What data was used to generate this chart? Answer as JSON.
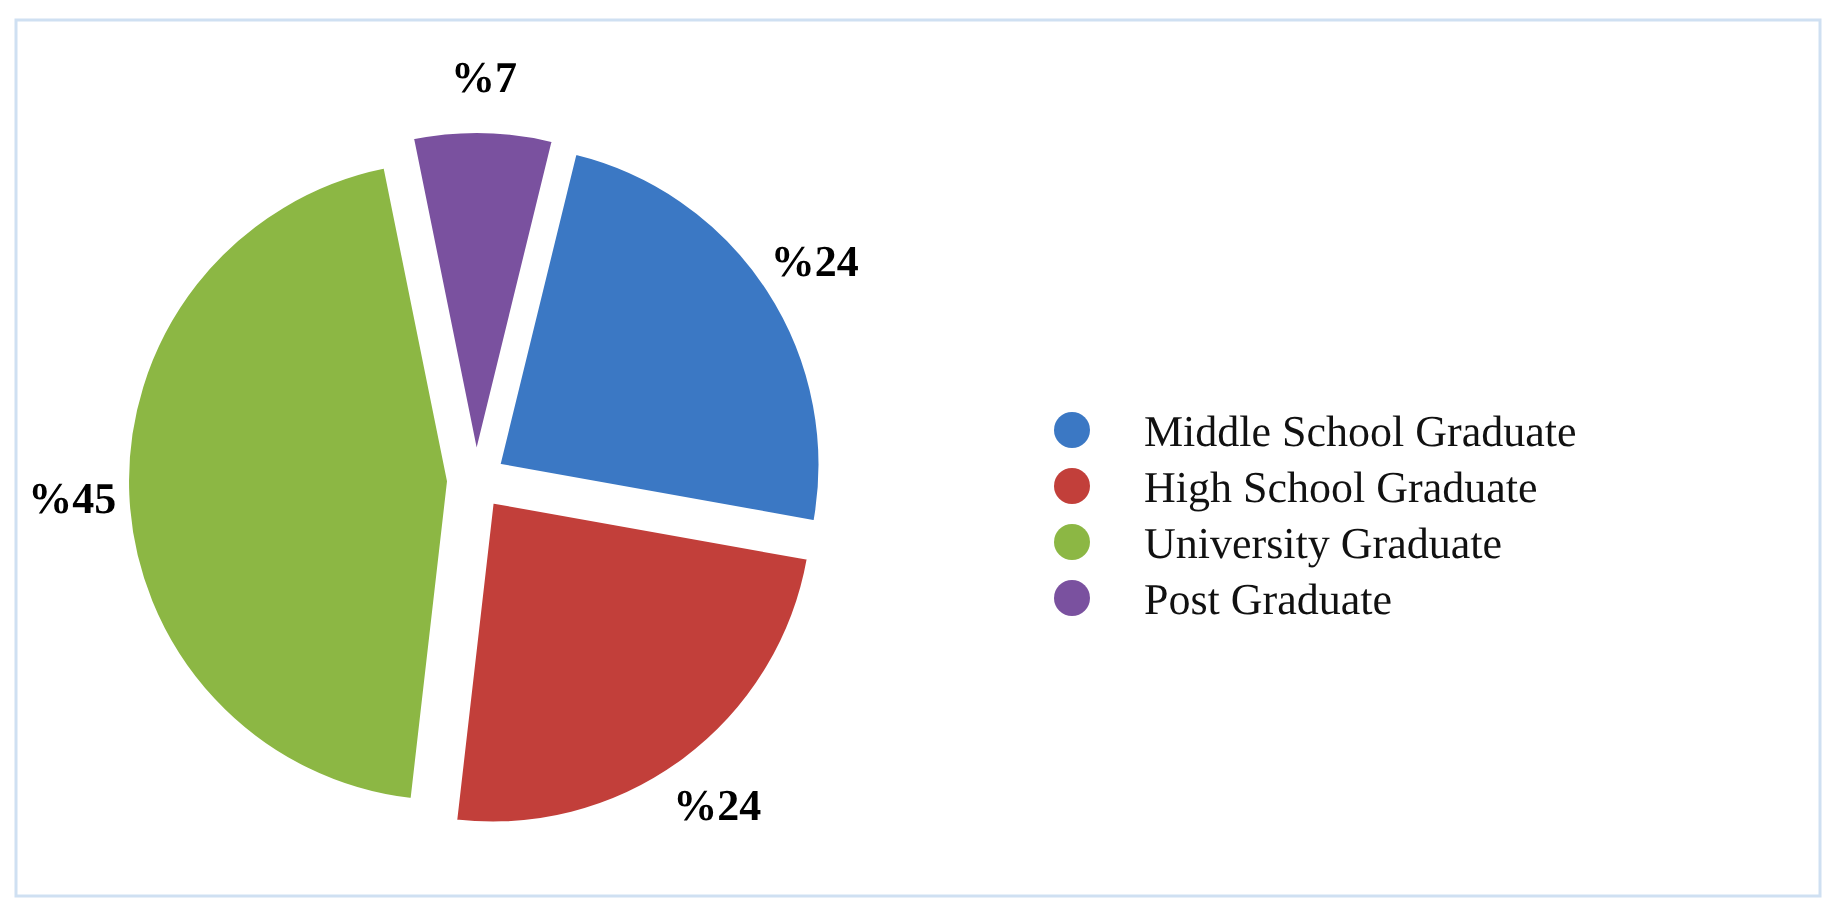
{
  "chart_data": {
    "type": "pie",
    "categories": [
      "Middle School Graduate",
      "High School Graduate",
      "University Graduate",
      "Post Graduate"
    ],
    "values": [
      24,
      24,
      45,
      7
    ],
    "colors": [
      "#3b78c4",
      "#c23f3a",
      "#8cb744",
      "#7a519f"
    ],
    "value_labels": [
      "%24",
      "%24",
      "%45",
      "%7"
    ],
    "legend": "right"
  }
}
